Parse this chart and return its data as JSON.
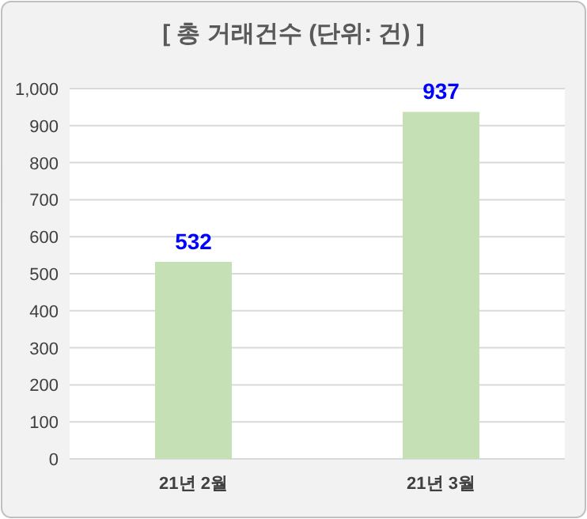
{
  "chart_data": {
    "type": "bar",
    "title": "[ 총 거래건수 (단위: 건) ]",
    "categories": [
      "21년 2월",
      "21년 3월"
    ],
    "values": [
      532,
      937
    ],
    "color": "#c5e0b4",
    "ylim": [
      0,
      1000
    ],
    "yticks": [
      0,
      100,
      200,
      300,
      400,
      500,
      600,
      700,
      800,
      900,
      {
        "value": 1000,
        "label": "1,000"
      }
    ],
    "grid": "y",
    "data_labels": true
  }
}
